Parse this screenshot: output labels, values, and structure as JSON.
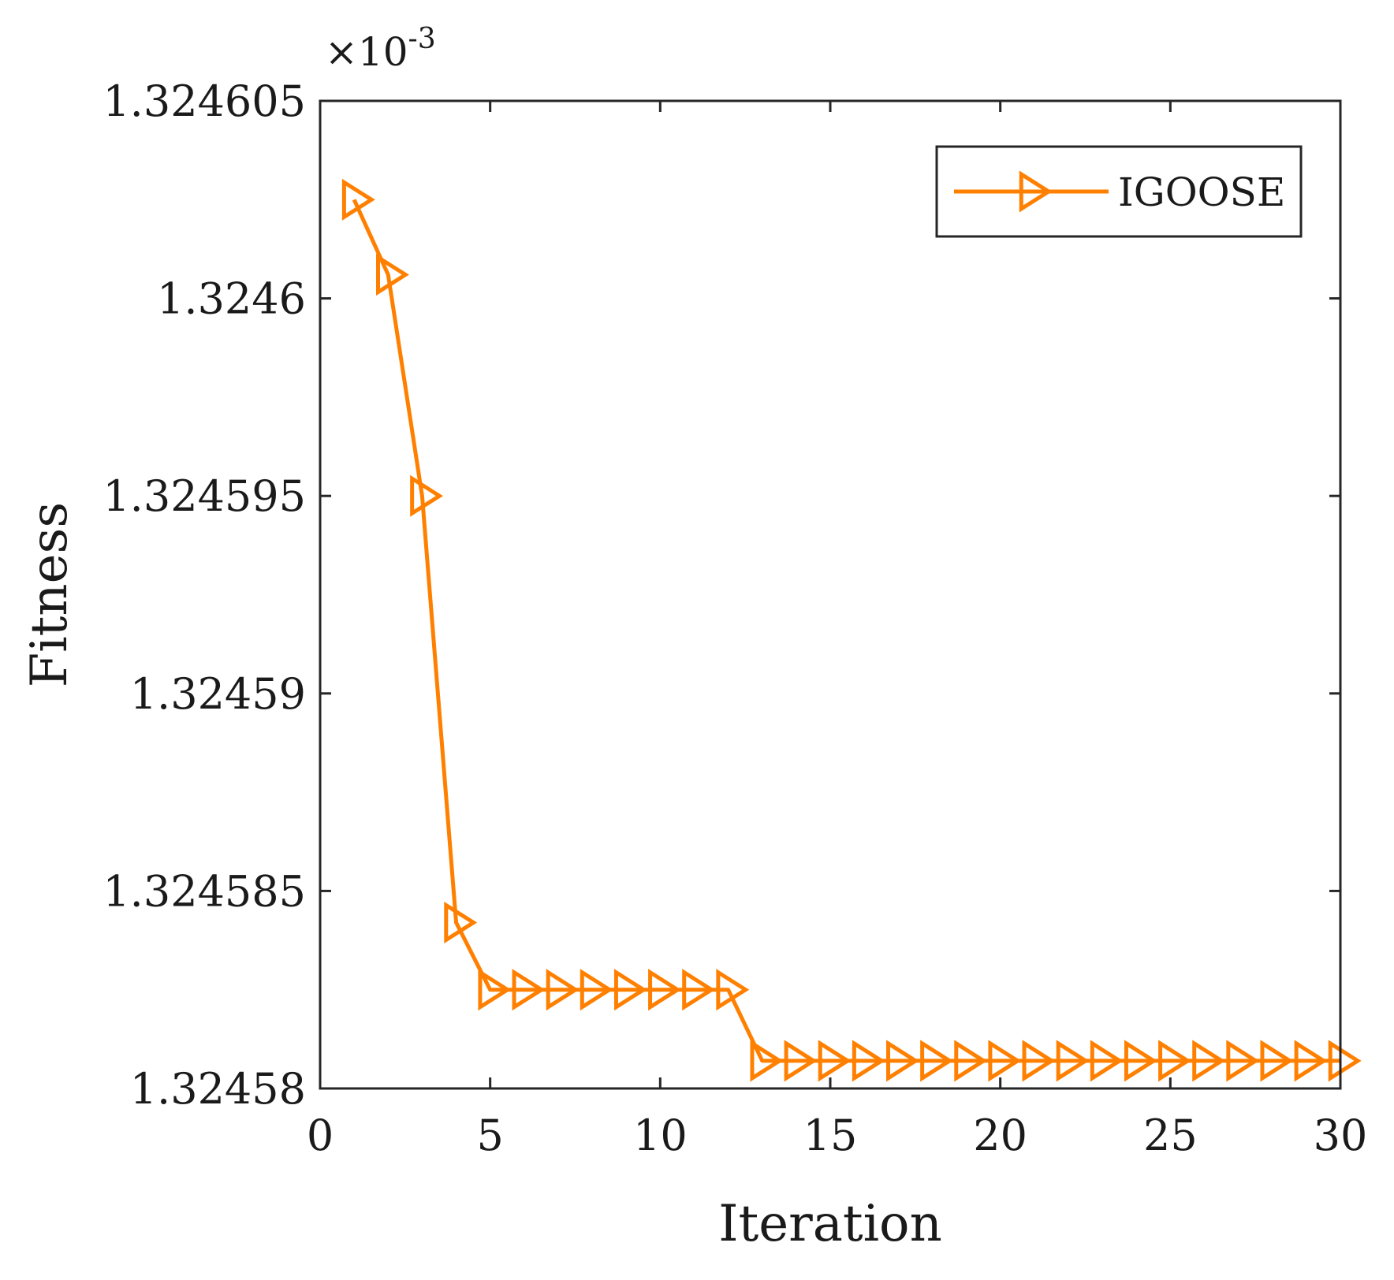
{
  "chart_data": {
    "type": "line",
    "title": "",
    "xlabel": "Iteration",
    "ylabel": "Fitness",
    "xlim": [
      0,
      30
    ],
    "ylim": [
      1.32458,
      1.324605
    ],
    "xticks": [
      0,
      5,
      10,
      15,
      20,
      25,
      30
    ],
    "xtick_labels": [
      "0",
      "5",
      "10",
      "15",
      "20",
      "25",
      "30"
    ],
    "yticks": [
      1.32458,
      1.324585,
      1.32459,
      1.324595,
      1.3246,
      1.324605
    ],
    "ytick_labels": [
      "1.32458",
      "1.324585",
      "1.32459",
      "1.324595",
      "1.3246",
      "1.324605"
    ],
    "y_exponent_base": "×10",
    "y_exponent_power": "-3",
    "grid": false,
    "legend_position": "top-right",
    "series": [
      {
        "name": "IGOOSE",
        "color": "#ff8000",
        "marker": "triangle-right",
        "x": [
          1,
          2,
          3,
          4,
          5,
          6,
          7,
          8,
          9,
          10,
          11,
          12,
          13,
          14,
          15,
          16,
          17,
          18,
          19,
          20,
          21,
          22,
          23,
          24,
          25,
          26,
          27,
          28,
          29,
          30
        ],
        "values": [
          1.3246025,
          1.3246006,
          1.324595,
          1.3245842,
          1.3245825,
          1.3245825,
          1.3245825,
          1.3245825,
          1.3245825,
          1.3245825,
          1.3245825,
          1.3245825,
          1.3245807,
          1.3245807,
          1.3245807,
          1.3245807,
          1.3245807,
          1.3245807,
          1.3245807,
          1.3245807,
          1.3245807,
          1.3245807,
          1.3245807,
          1.3245807,
          1.3245807,
          1.3245807,
          1.3245807,
          1.3245807,
          1.3245807,
          1.3245807
        ]
      }
    ]
  }
}
